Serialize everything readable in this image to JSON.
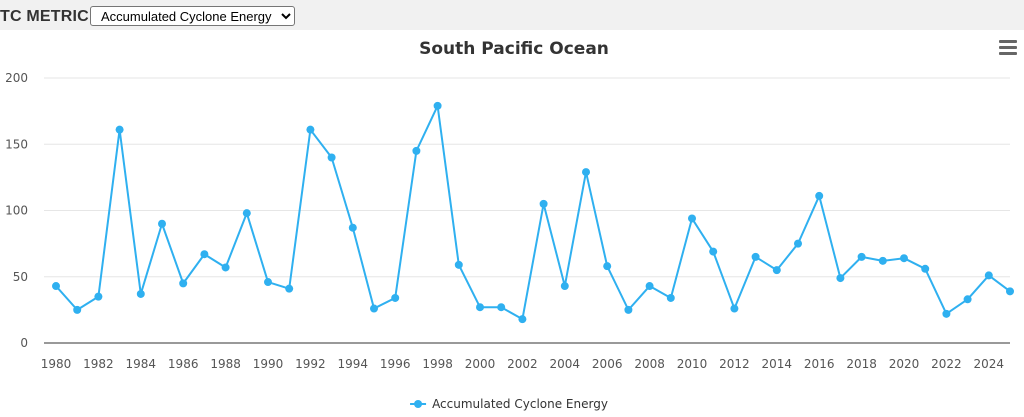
{
  "header": {
    "metric_label": "TC METRIC",
    "metric_select_value": "Accumulated Cyclone Energy"
  },
  "colors": {
    "series": "#2fb0f0"
  },
  "icons": {
    "menu": "hamburger-menu-icon"
  },
  "chart_data": {
    "type": "line",
    "title": "South Pacific Ocean",
    "xlabel": "",
    "ylabel": "",
    "ylim": [
      0,
      200
    ],
    "yticks": [
      0,
      50,
      100,
      150,
      200
    ],
    "xticks": [
      1980,
      1982,
      1984,
      1986,
      1988,
      1990,
      1992,
      1994,
      1996,
      1998,
      2000,
      2002,
      2004,
      2006,
      2008,
      2010,
      2012,
      2014,
      2016,
      2018,
      2020,
      2022,
      2024
    ],
    "xlim": [
      1980,
      2025
    ],
    "grid": true,
    "legend_position": "bottom-center",
    "x": [
      1980,
      1981,
      1982,
      1983,
      1984,
      1985,
      1986,
      1987,
      1988,
      1989,
      1990,
      1991,
      1992,
      1993,
      1994,
      1995,
      1996,
      1997,
      1998,
      1999,
      2000,
      2001,
      2002,
      2003,
      2004,
      2005,
      2006,
      2007,
      2008,
      2009,
      2010,
      2011,
      2012,
      2013,
      2014,
      2015,
      2016,
      2017,
      2018,
      2019,
      2020,
      2021,
      2022,
      2023,
      2024,
      2025
    ],
    "series": [
      {
        "name": "Accumulated Cyclone Energy",
        "values": [
          43,
          25,
          35,
          161,
          37,
          90,
          45,
          67,
          57,
          98,
          46,
          41,
          161,
          140,
          87,
          26,
          34,
          145,
          179,
          59,
          27,
          27,
          18,
          105,
          43,
          129,
          58,
          25,
          43,
          34,
          94,
          69,
          26,
          65,
          55,
          75,
          111,
          49,
          65,
          62,
          64,
          56,
          22,
          33,
          51,
          39
        ]
      }
    ]
  }
}
